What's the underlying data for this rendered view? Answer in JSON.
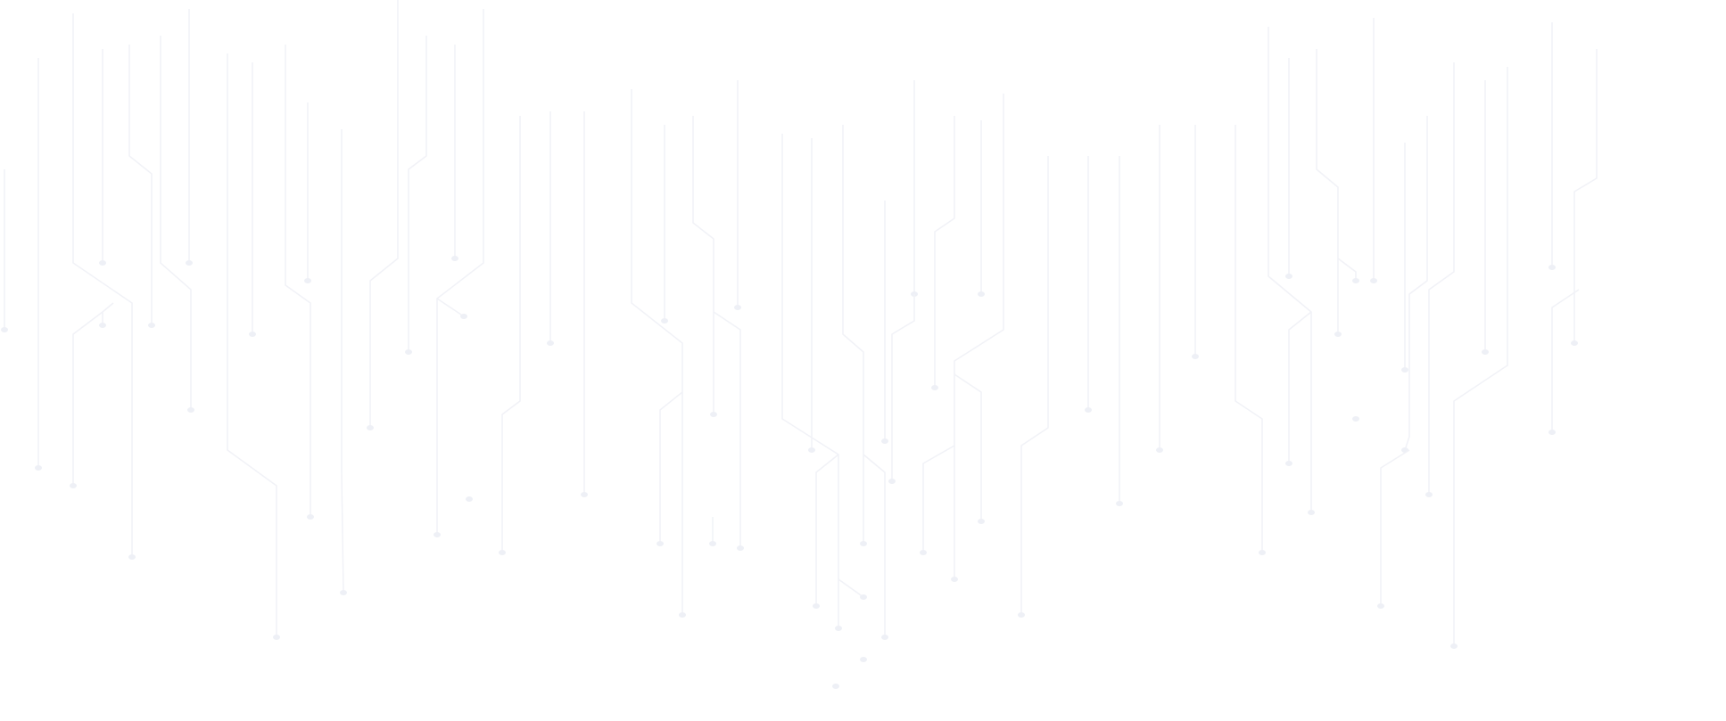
{
  "background": {
    "pattern": "circuit-traces",
    "background_color": "#ffffff",
    "trace_color": "#f1f2f7",
    "node_color": "#eef0f6"
  }
}
